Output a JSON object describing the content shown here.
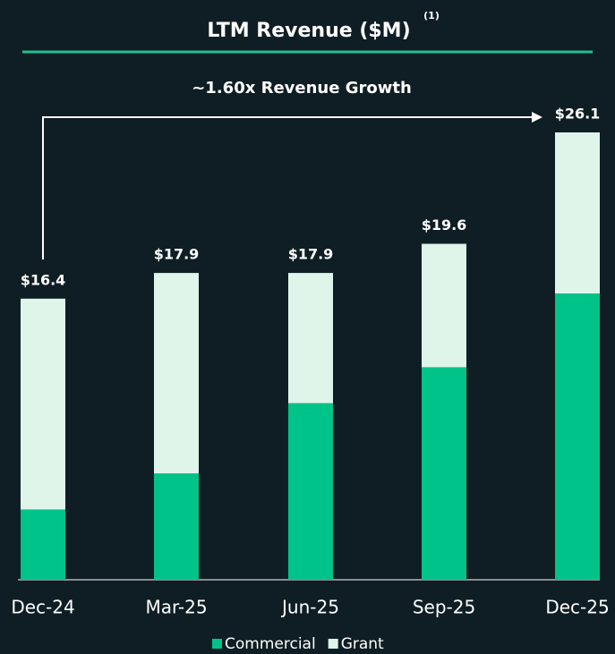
{
  "chart_data": {
    "type": "stacked_bar",
    "title": "LTM Revenue ($M)",
    "title_note": "(1)",
    "annotation": "~1.60x Revenue Growth",
    "categories": [
      "Dec-24",
      "Mar-25",
      "Jun-25",
      "Sep-25",
      "Dec-25"
    ],
    "series": [
      {
        "name": "Commercial",
        "color": "#00c389",
        "values": [
          4.1,
          6.2,
          10.3,
          12.4,
          16.7
        ]
      },
      {
        "name": "Grant",
        "color": "#dff5ea",
        "values": [
          12.3,
          11.7,
          7.6,
          7.2,
          9.4
        ]
      }
    ],
    "totals": {
      "values": [
        16.4,
        17.9,
        17.9,
        19.6,
        26.1
      ],
      "value_labels": [
        "$16.4",
        "$17.9",
        "$17.9",
        "$19.6",
        "$26.1"
      ]
    },
    "legend": "bottom"
  }
}
